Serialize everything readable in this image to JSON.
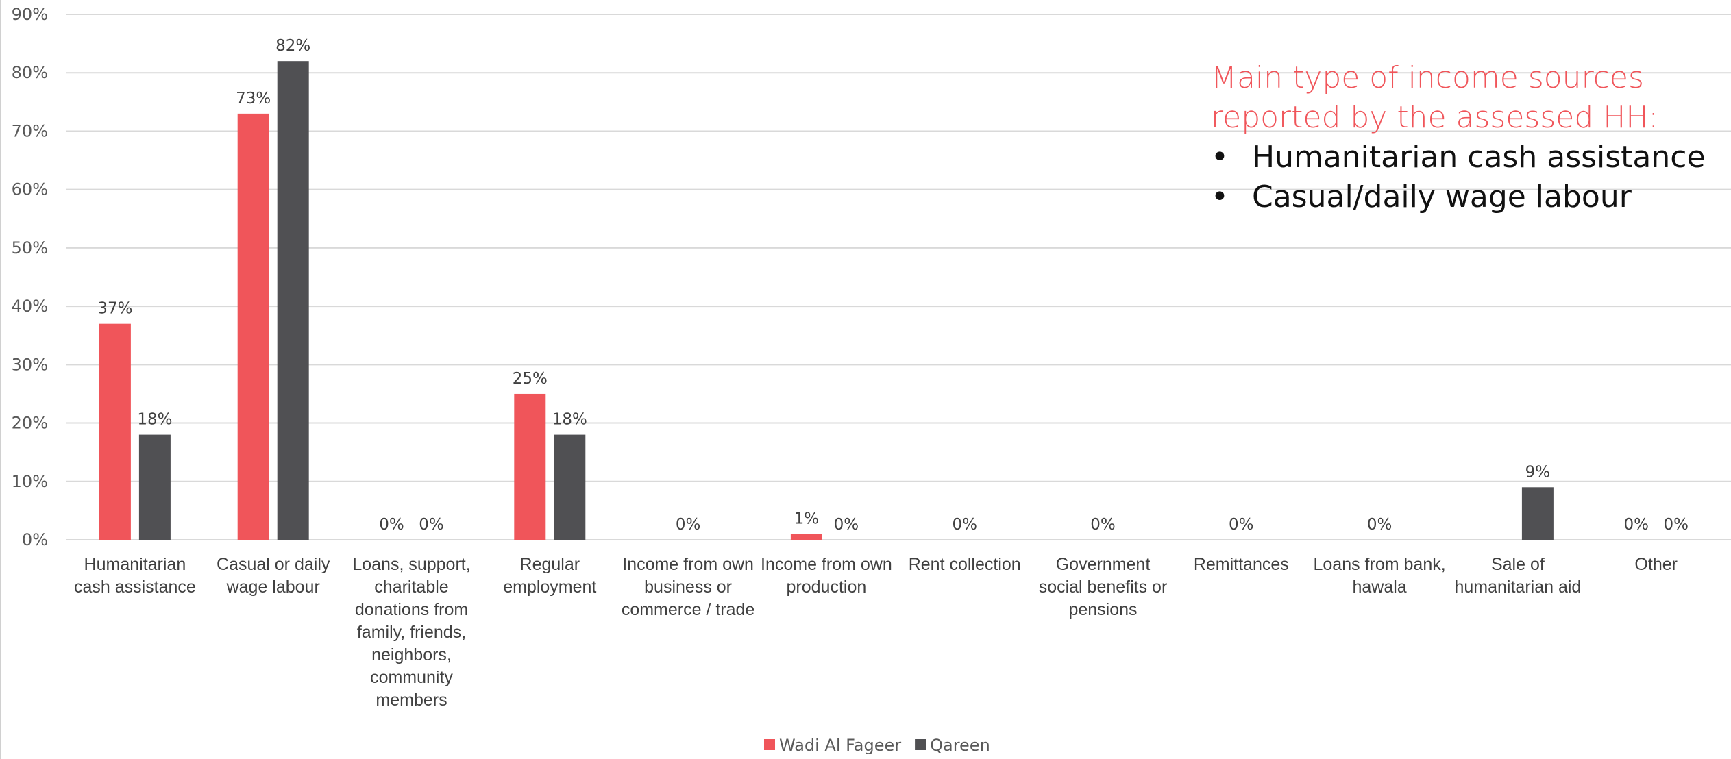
{
  "chart_data": {
    "type": "bar",
    "categories": [
      [
        "Humanitarian",
        "cash assistance"
      ],
      [
        "Casual or daily",
        "wage labour"
      ],
      [
        "Loans, support,",
        "charitable",
        "donations from",
        "family, friends,",
        "neighbors,",
        "community",
        "members"
      ],
      [
        "Regular",
        "employment"
      ],
      [
        "Income from own",
        "business or",
        "commerce / trade"
      ],
      [
        "Income from own",
        "production"
      ],
      [
        "Rent collection"
      ],
      [
        "Government",
        "social benefits or",
        "pensions"
      ],
      [
        "Remittances"
      ],
      [
        "Loans from bank,",
        "hawala"
      ],
      [
        "Sale of",
        "humanitarian aid"
      ],
      [
        "Other"
      ]
    ],
    "series": [
      {
        "name": "Wadi Al Fageer",
        "color": "#f0555a",
        "values": [
          37,
          73,
          0,
          25,
          null,
          1,
          null,
          null,
          null,
          null,
          null,
          0
        ],
        "labels": [
          "37%",
          "73%",
          "0%",
          "25%",
          "",
          "1%",
          "",
          "",
          "",
          "",
          "",
          "0%"
        ]
      },
      {
        "name": "Qareen",
        "color": "#505053",
        "values": [
          18,
          82,
          0,
          18,
          null,
          0,
          null,
          null,
          null,
          null,
          9,
          0
        ],
        "labels": [
          "18%",
          "82%",
          "0%",
          "18%",
          "",
          "0%",
          "",
          "",
          "",
          "",
          "9%",
          "0%"
        ]
      }
    ],
    "single_labels": [
      "",
      "",
      "",
      "",
      "0%",
      "",
      "0%",
      "0%",
      "0%",
      "0%",
      "",
      ""
    ],
    "yaxis": {
      "min": 0,
      "max": 90,
      "step": 10,
      "tick_labels": [
        "0%",
        "10%",
        "20%",
        "30%",
        "40%",
        "50%",
        "60%",
        "70%",
        "80%",
        "90%"
      ]
    },
    "grid": true,
    "legend": "bottom-center",
    "title": "",
    "xlabel": "",
    "ylabel": ""
  },
  "annotation": {
    "heading_line1": "Main type of income sources",
    "heading_line2": "reported by the assessed HH:",
    "bullet_symbol": "•",
    "bullets": [
      "Humanitarian cash assistance",
      "Casual/daily wage labour"
    ]
  }
}
